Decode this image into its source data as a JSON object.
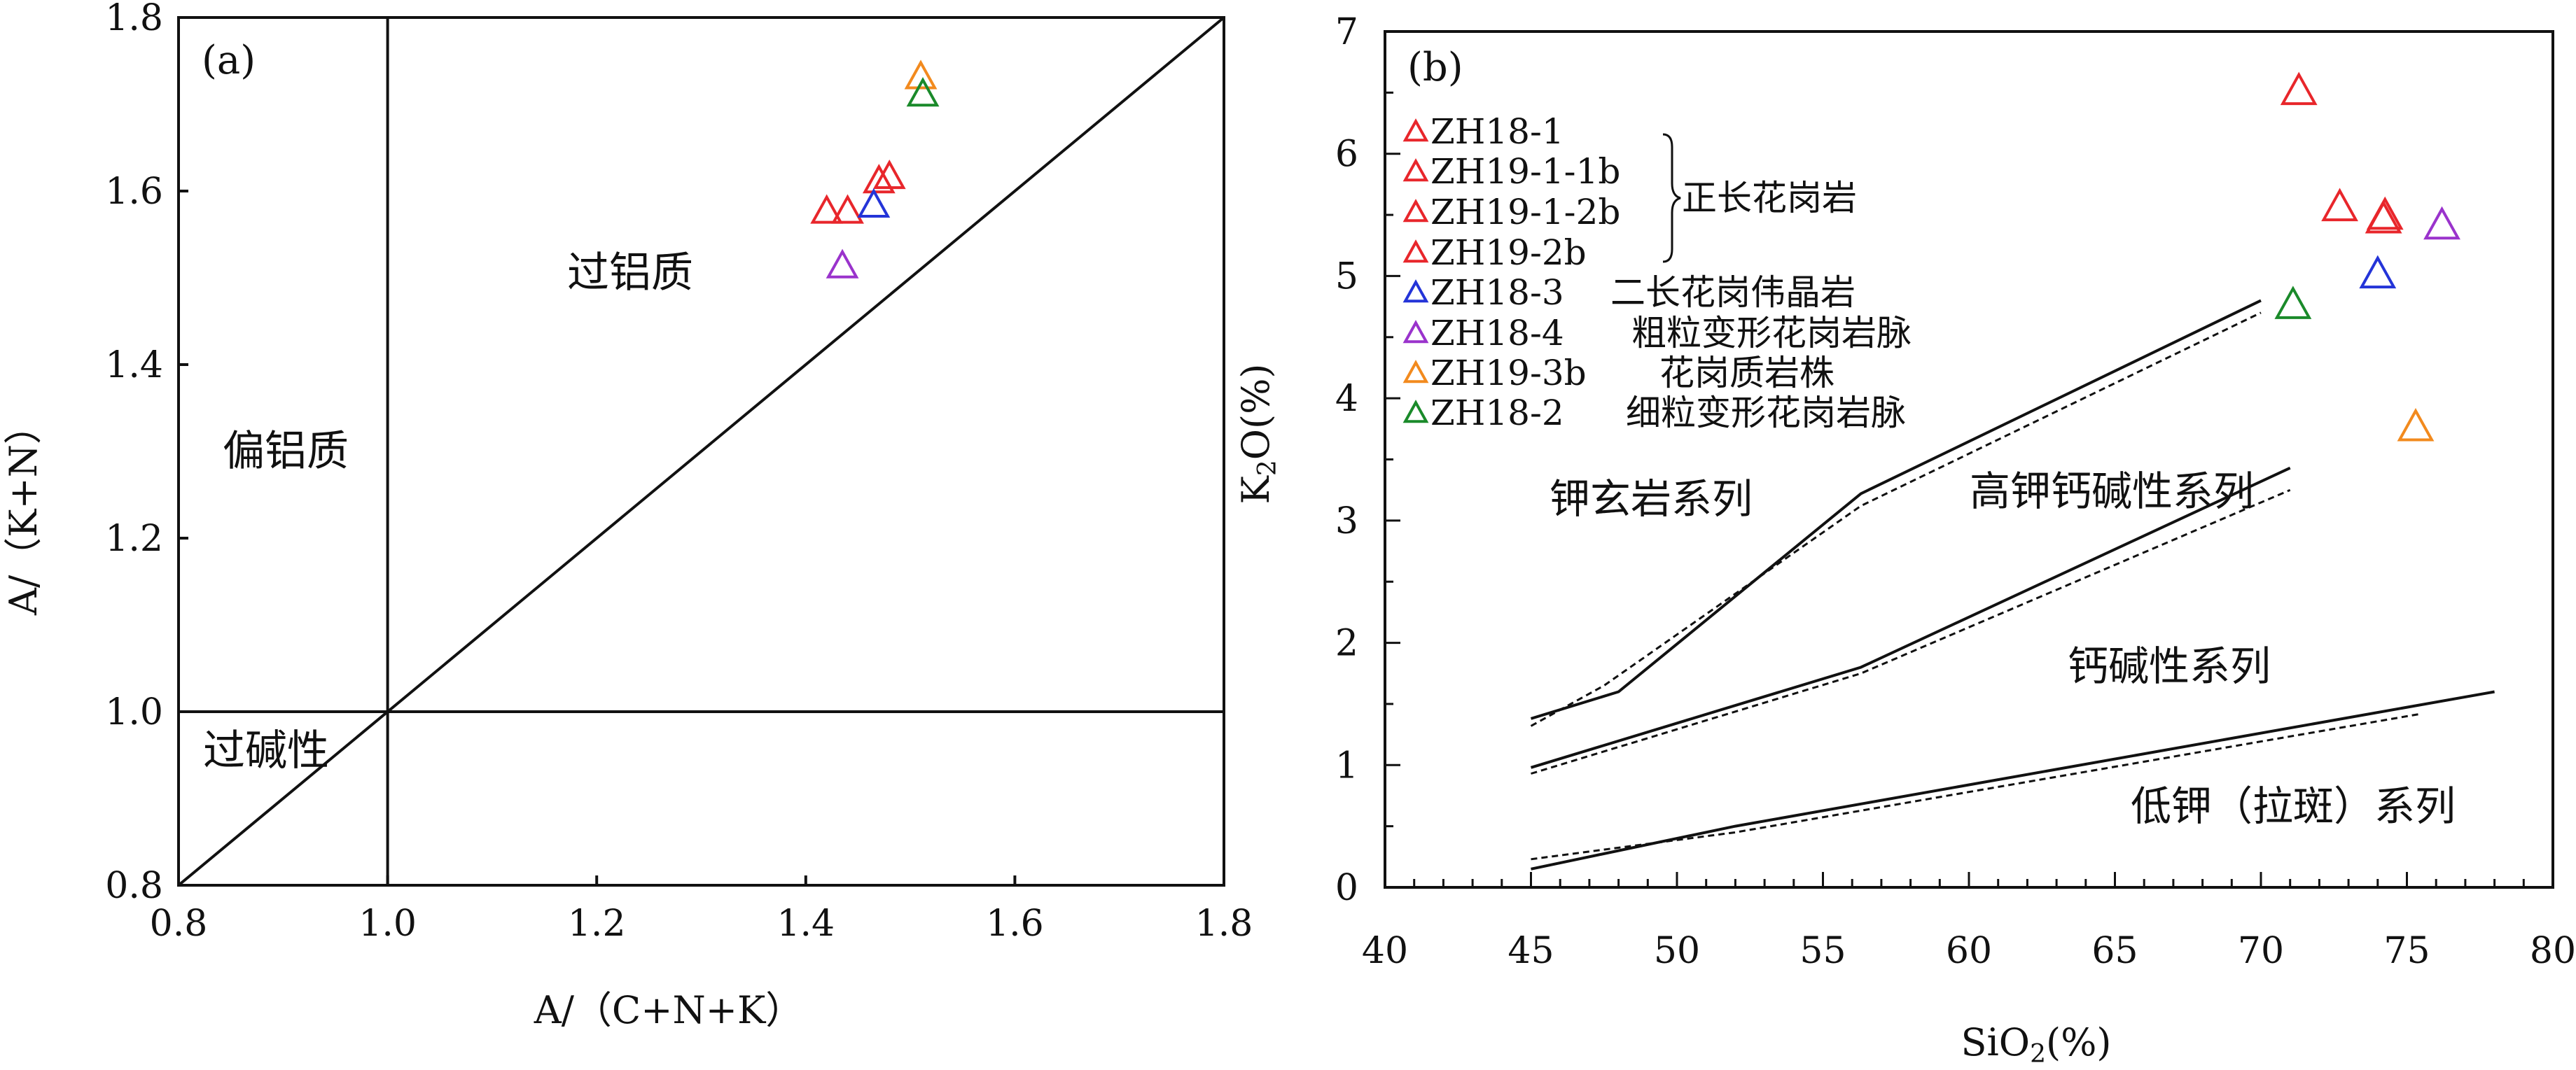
{
  "chart_data": [
    {
      "type": "scatter",
      "panel_label": "(a)",
      "xlabel": "A/（C+N+K）",
      "ylabel": "A/（K+N）",
      "xlim": [
        0.8,
        1.8
      ],
      "ylim": [
        0.8,
        1.8
      ],
      "x_ticks": [
        "0.8",
        "1.0",
        "1.2",
        "1.4",
        "1.6",
        "1.8"
      ],
      "y_ticks": [
        "0.8",
        "1.0",
        "1.2",
        "1.4",
        "1.6",
        "1.8"
      ],
      "grid": false,
      "region_labels": [
        "过铝质",
        "偏铝质",
        "过碱性"
      ],
      "reference_lines": [
        {
          "x": [
            1.0,
            1.0
          ],
          "y": [
            0.8,
            1.8
          ]
        },
        {
          "x": [
            0.8,
            1.8
          ],
          "y": [
            1.0,
            1.0
          ]
        },
        {
          "x": [
            0.8,
            1.8
          ],
          "y": [
            0.8,
            1.8
          ]
        }
      ],
      "points": [
        {
          "x": 1.42,
          "y": 1.575,
          "color": "#e8262b"
        },
        {
          "x": 1.44,
          "y": 1.575,
          "color": "#e8262b"
        },
        {
          "x": 1.47,
          "y": 1.61,
          "color": "#e8262b"
        },
        {
          "x": 1.48,
          "y": 1.615,
          "color": "#e8262b"
        },
        {
          "x": 1.465,
          "y": 1.582,
          "color": "#2434d8"
        },
        {
          "x": 1.435,
          "y": 1.512,
          "color": "#9a33cc"
        },
        {
          "x": 1.51,
          "y": 1.73,
          "color": "#f28a1e"
        },
        {
          "x": 1.512,
          "y": 1.71,
          "color": "#1a8a2a"
        }
      ]
    },
    {
      "type": "scatter",
      "panel_label": "(b)",
      "xlabel": "SiO2(%)",
      "ylabel": "K2O(%)",
      "xlim": [
        40,
        80
      ],
      "ylim": [
        0,
        7
      ],
      "x_ticks": [
        "40",
        "45",
        "50",
        "55",
        "60",
        "65",
        "70",
        "75",
        "80"
      ],
      "y_ticks": [
        "0",
        "1",
        "2",
        "3",
        "4",
        "5",
        "6",
        "7"
      ],
      "grid": false,
      "legend_position": "top-left",
      "legend": [
        {
          "sample": "ZH18-1",
          "rock": "",
          "color": "#e8262b"
        },
        {
          "sample": "ZH19-1-1b",
          "rock": "",
          "color": "#e8262b"
        },
        {
          "sample": "ZH19-1-2b",
          "rock": "",
          "color": "#e8262b"
        },
        {
          "sample": "ZH19-2b",
          "rock": "",
          "color": "#e8262b"
        },
        {
          "sample": "ZH18-3",
          "rock": "二长花岗伟晶岩",
          "color": "#2434d8"
        },
        {
          "sample": "ZH18-4",
          "rock": "粗粒变形花岗岩脉",
          "color": "#9a33cc"
        },
        {
          "sample": "ZH19-3b",
          "rock": "花岗质岩株",
          "color": "#f28a1e"
        },
        {
          "sample": "ZH18-2",
          "rock": "细粒变形花岗岩脉",
          "color": "#1a8a2a"
        }
      ],
      "group_label": "正长花岗岩",
      "series_labels": [
        "钾玄岩系列",
        "高钾钙碱性系列",
        "钙碱性系列",
        "低钾（拉斑）系列"
      ],
      "boundaries_solid": [
        {
          "x": [
            45,
            48,
            56.3,
            70
          ],
          "y": [
            1.38,
            1.6,
            3.22,
            4.8
          ]
        },
        {
          "x": [
            45,
            56.3,
            71
          ],
          "y": [
            0.98,
            1.8,
            3.43
          ]
        },
        {
          "x": [
            45,
            52,
            78
          ],
          "y": [
            0.15,
            0.5,
            1.6
          ]
        }
      ],
      "boundaries_dashed": [
        {
          "x": [
            45,
            47.5,
            56.3,
            70
          ],
          "y": [
            1.32,
            1.65,
            3.12,
            4.7
          ]
        },
        {
          "x": [
            45,
            56.3,
            71
          ],
          "y": [
            0.93,
            1.75,
            3.25
          ]
        },
        {
          "x": [
            45,
            52,
            75.5
          ],
          "y": [
            0.23,
            0.45,
            1.42
          ]
        }
      ],
      "points": [
        {
          "x": 71.3,
          "y": 6.5,
          "color": "#e8262b"
        },
        {
          "x": 72.7,
          "y": 5.55,
          "color": "#e8262b"
        },
        {
          "x": 74.2,
          "y": 5.45,
          "color": "#e8262b"
        },
        {
          "x": 74.25,
          "y": 5.48,
          "color": "#e8262b"
        },
        {
          "x": 74.0,
          "y": 5.0,
          "color": "#2434d8"
        },
        {
          "x": 76.2,
          "y": 5.4,
          "color": "#9a33cc"
        },
        {
          "x": 75.3,
          "y": 3.75,
          "color": "#f28a1e"
        },
        {
          "x": 71.1,
          "y": 4.75,
          "color": "#1a8a2a"
        }
      ]
    }
  ]
}
